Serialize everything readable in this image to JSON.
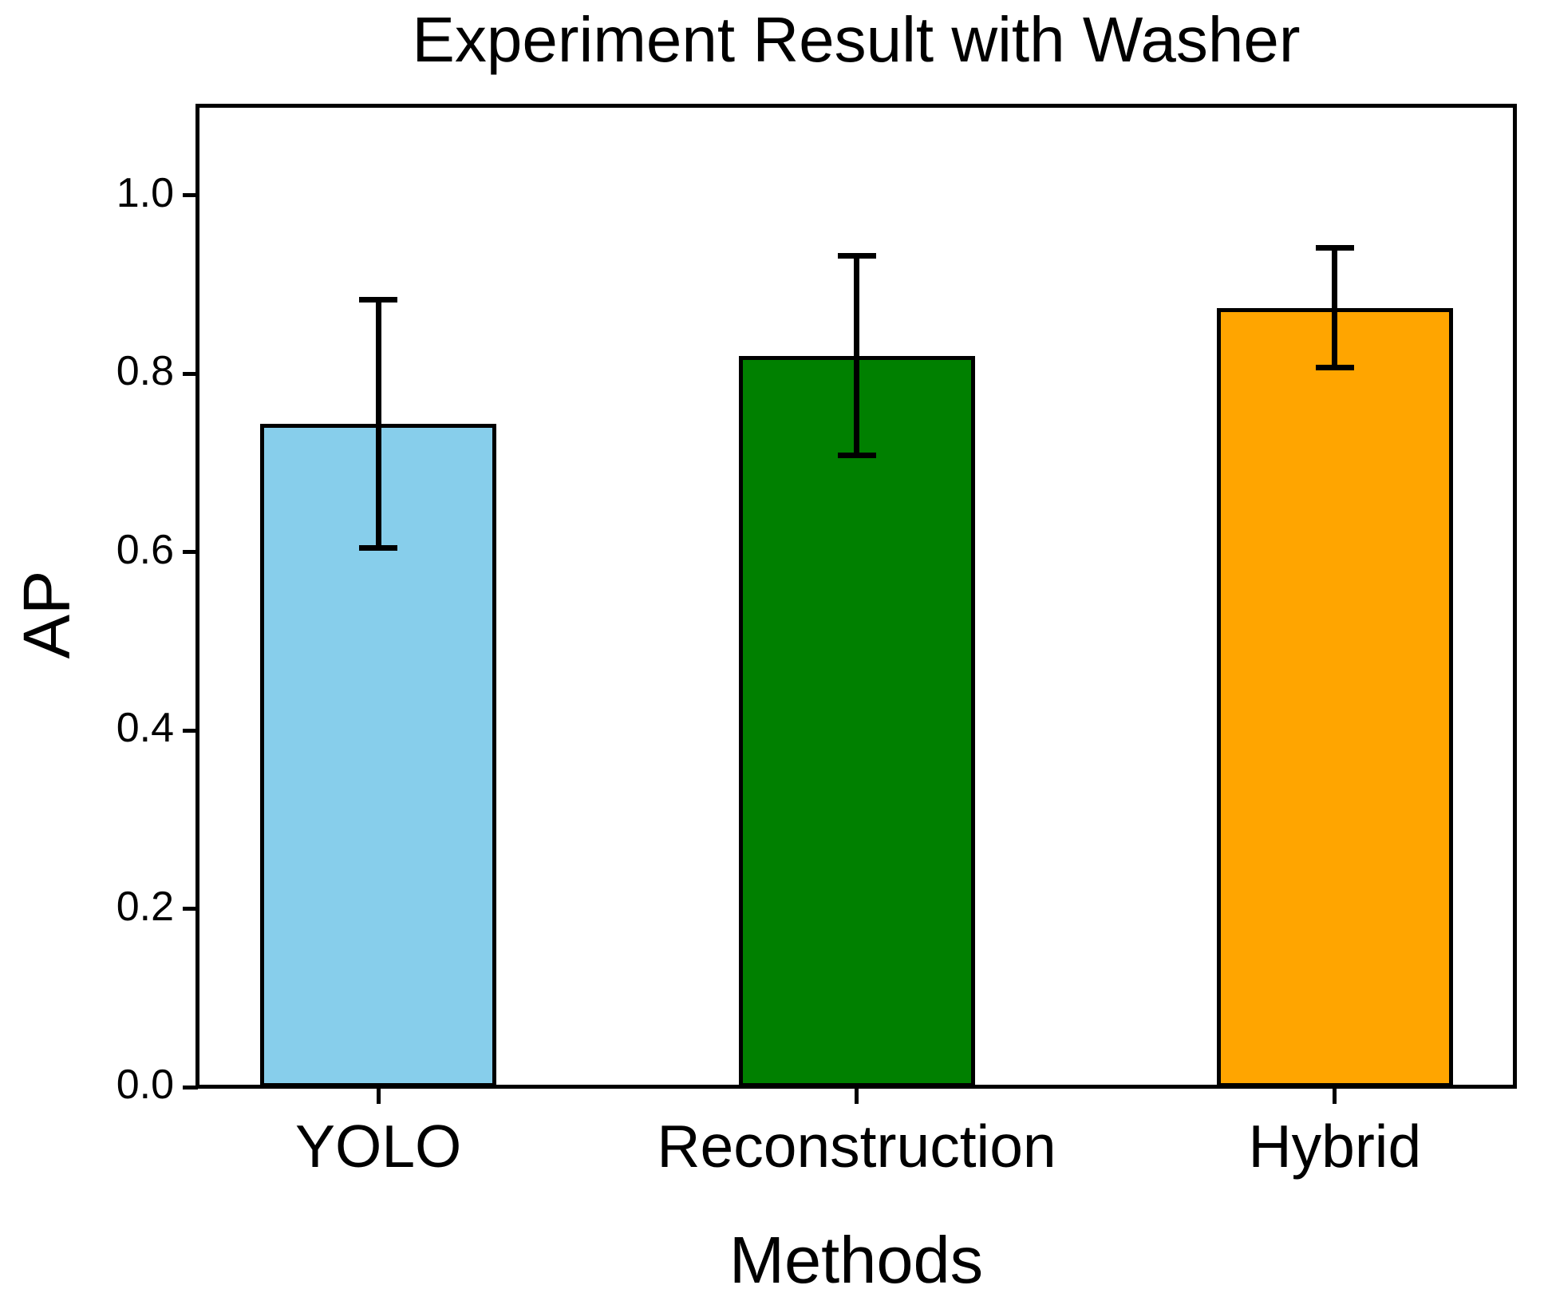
{
  "chart_data": {
    "type": "bar",
    "title": "Experiment Result with Washer",
    "xlabel": "Methods",
    "ylabel": "AP",
    "categories": [
      "YOLO",
      "Reconstruction",
      "Hybrid"
    ],
    "values": [
      0.744,
      0.82,
      0.874
    ],
    "errors": [
      0.139,
      0.112,
      0.067
    ],
    "error_ranges": [
      [
        0.605,
        0.883
      ],
      [
        0.708,
        0.932
      ],
      [
        0.807,
        0.941
      ]
    ],
    "bar_colors": [
      "#87CEEB",
      "#008000",
      "#FFA500"
    ],
    "bar_edge_color": "#000000",
    "error_bar_color": "#000000",
    "ytick_labels": [
      "0.0",
      "0.2",
      "0.4",
      "0.6",
      "0.8",
      "1.0"
    ],
    "ylim": [
      0,
      1.1
    ],
    "grid": false,
    "legend_position": "none",
    "background_color": "#FFFFFF",
    "text_color": "#000000"
  }
}
